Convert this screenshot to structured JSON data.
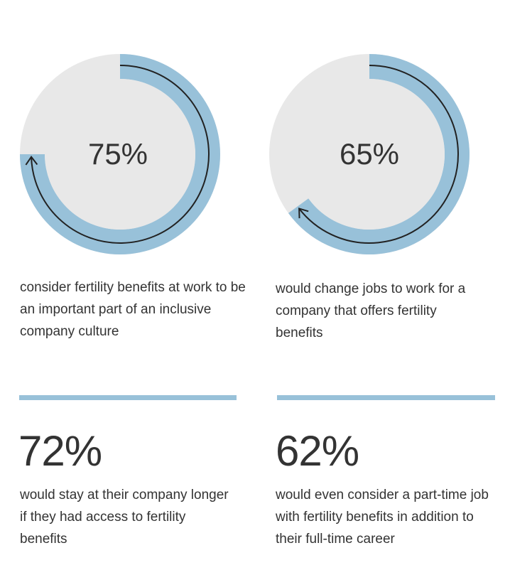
{
  "colors": {
    "accent": "#98c1d9",
    "track": "#e8e8e8",
    "text": "#333333",
    "arrow": "#222222"
  },
  "chart_data": [
    {
      "type": "pie",
      "values": [
        75,
        25
      ],
      "label": "75%",
      "caption": "consider fertility benefits at work to be an important part of an inclusive company culture"
    },
    {
      "type": "pie",
      "values": [
        65,
        35
      ],
      "label": "65%",
      "caption": "would change jobs to work for a company that offers fertility benefits"
    }
  ],
  "stats": [
    {
      "value": "72%",
      "caption": "would stay at their company longer if they had access to fertility benefits"
    },
    {
      "value": "62%",
      "caption": "would even consider a part-time job with fertility benefits in addition to their full-time career"
    }
  ]
}
